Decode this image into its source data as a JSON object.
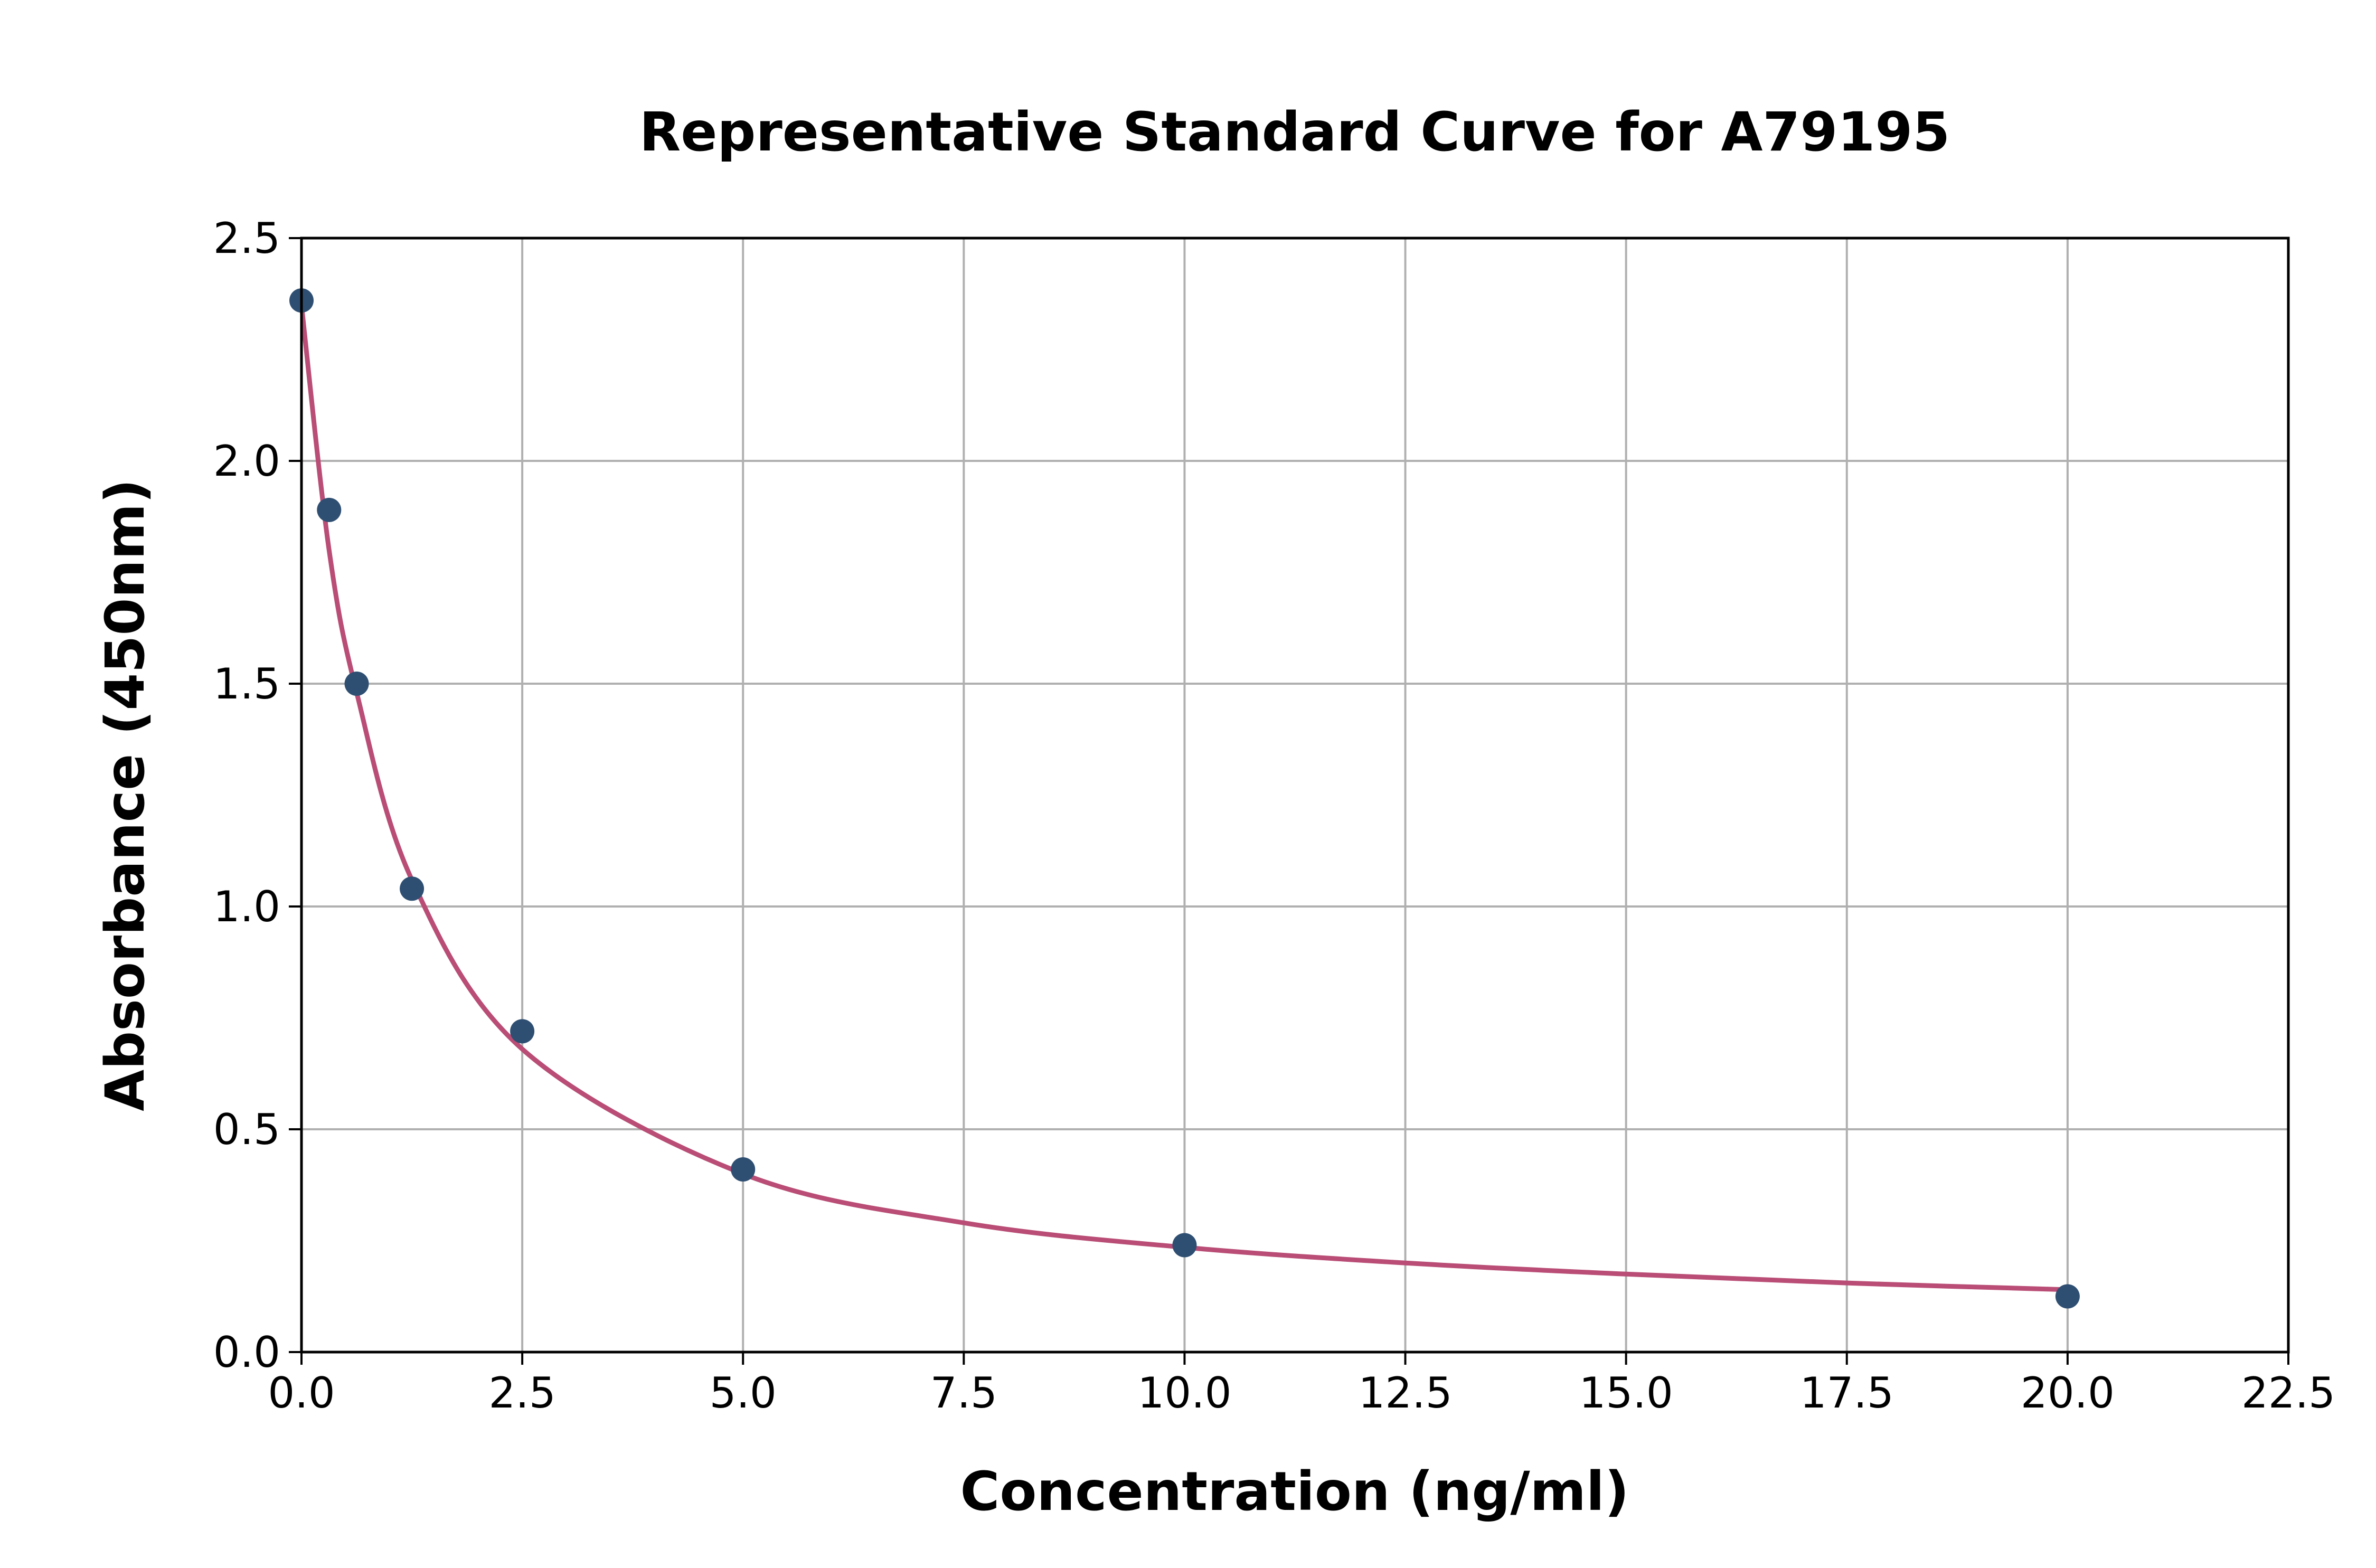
{
  "chart_data": {
    "type": "scatter",
    "title": "Representative Standard Curve for A79195",
    "xlabel": "Concentration (ng/ml)",
    "ylabel": "Absorbance (450nm)",
    "xlim": [
      0,
      22.5
    ],
    "ylim": [
      0,
      2.5
    ],
    "xticks": [
      "0.0",
      "2.5",
      "5.0",
      "7.5",
      "10.0",
      "12.5",
      "15.0",
      "17.5",
      "20.0",
      "22.5"
    ],
    "yticks": [
      "0.0",
      "0.5",
      "1.0",
      "1.5",
      "2.0",
      "2.5"
    ],
    "grid": true,
    "points": {
      "x": [
        0,
        0.3125,
        0.625,
        1.25,
        2.5,
        5,
        10,
        20
      ],
      "y": [
        2.36,
        1.89,
        1.5,
        1.04,
        0.72,
        0.41,
        0.24,
        0.125
      ]
    },
    "fit_curve": {
      "x": [
        0,
        0.3125,
        0.625,
        1.25,
        2.5,
        5,
        7.5,
        10,
        12.5,
        15,
        17.5,
        20
      ],
      "y": [
        2.35,
        1.8,
        1.48,
        1.06,
        0.68,
        0.4,
        0.29,
        0.235,
        0.2,
        0.175,
        0.155,
        0.14
      ]
    },
    "colors": {
      "points": "#2f4f72",
      "curve": "#b94d75",
      "grid": "#b0b0b0"
    }
  }
}
